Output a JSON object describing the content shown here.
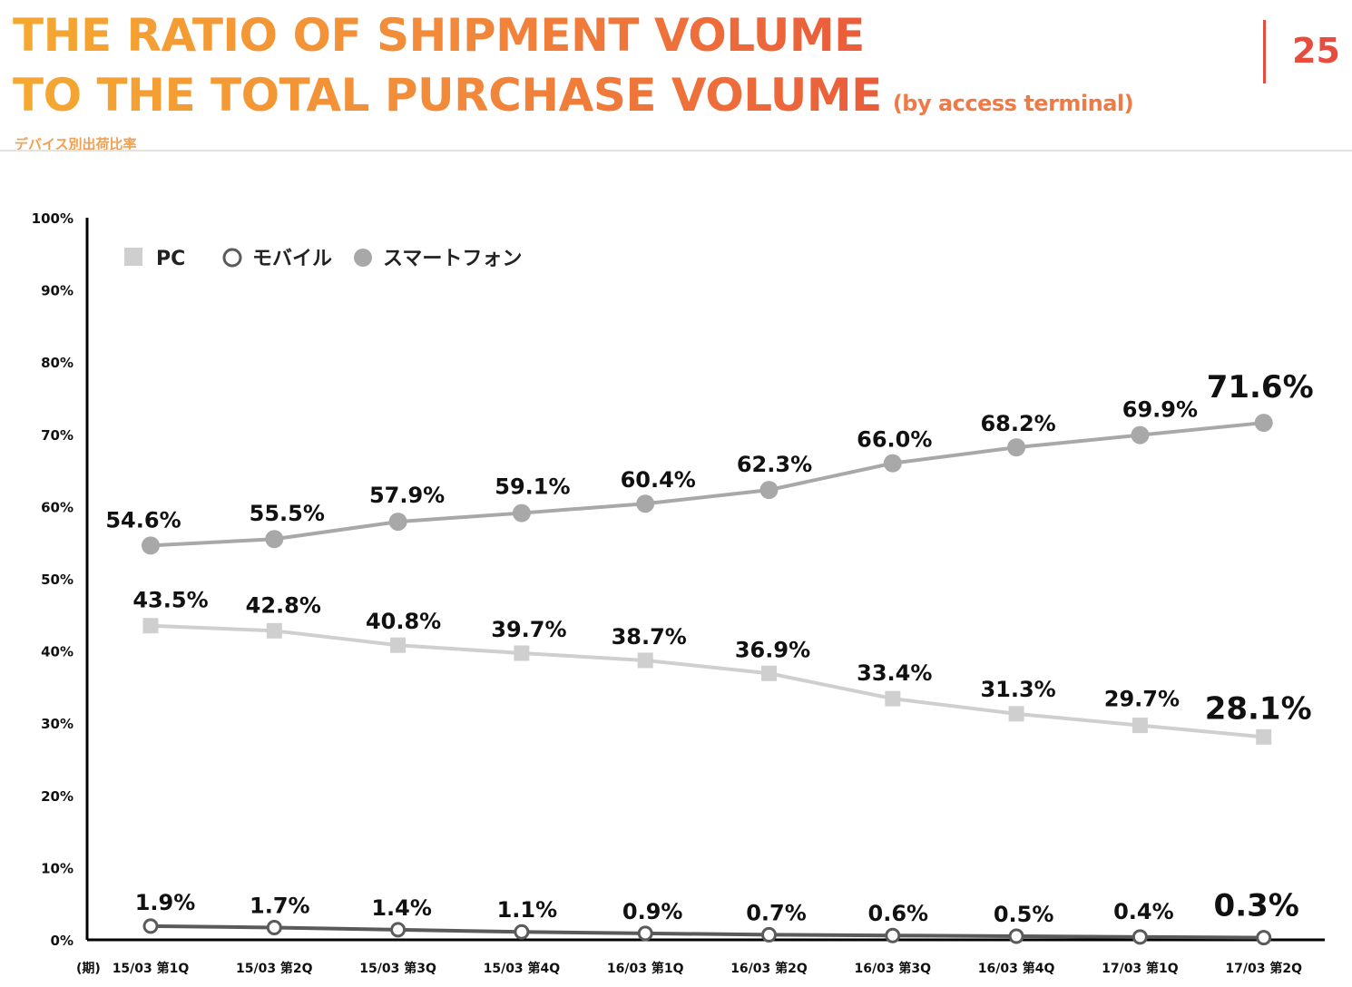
{
  "header": {
    "title_line1": "THE RATIO OF SHIPMENT VOLUME",
    "title_line2": "TO THE TOTAL PURCHASE  VOLUME",
    "subtitle": "(by access terminal)",
    "japanese_subtitle": "デバイス別出荷比率",
    "page_number": "25"
  },
  "colors": {
    "title_gradient_start": "#f5a830",
    "title_gradient_end": "#ea5c3a",
    "page_number": "#e84c3d",
    "pc": "#cfcfcf",
    "mobile": "#5a5a5a",
    "smartphone": "#a8a8a8"
  },
  "chart_data": {
    "type": "line",
    "x_prefix": "(期)",
    "categories": [
      "15/03 第1Q",
      "15/03 第2Q",
      "15/03 第3Q",
      "15/03 第4Q",
      "16/03 第1Q",
      "16/03 第2Q",
      "16/03 第3Q",
      "16/03 第4Q",
      "17/03 第1Q",
      "17/03 第2Q"
    ],
    "y_ticks": [
      "0%",
      "10%",
      "20%",
      "30%",
      "40%",
      "50%",
      "60%",
      "70%",
      "80%",
      "90%",
      "100%"
    ],
    "ylim": [
      0,
      100
    ],
    "grid": false,
    "legend_position": "top-left",
    "series": [
      {
        "name": "PC",
        "marker": "square",
        "values": [
          43.5,
          42.8,
          40.8,
          39.7,
          38.7,
          36.9,
          33.4,
          31.3,
          29.7,
          28.1
        ],
        "labels": [
          "43.5%",
          "42.8%",
          "40.8%",
          "39.7%",
          "38.7%",
          "36.9%",
          "33.4%",
          "31.3%",
          "29.7%",
          "28.1%"
        ]
      },
      {
        "name": "モバイル",
        "marker": "hollow-circle",
        "values": [
          1.9,
          1.7,
          1.4,
          1.1,
          0.9,
          0.7,
          0.6,
          0.5,
          0.4,
          0.3
        ],
        "labels": [
          "1.9%",
          "1.7%",
          "1.4%",
          "1.1%",
          "0.9%",
          "0.7%",
          "0.6%",
          "0.5%",
          "0.4%",
          "0.3%"
        ]
      },
      {
        "name": "スマートフォン",
        "marker": "filled-circle",
        "values": [
          54.6,
          55.5,
          57.9,
          59.1,
          60.4,
          62.3,
          66.0,
          68.2,
          69.9,
          71.6
        ],
        "labels": [
          "54.6%",
          "55.5%",
          "57.9%",
          "59.1%",
          "60.4%",
          "62.3%",
          "66.0%",
          "68.2%",
          "69.9%",
          "71.6%"
        ]
      }
    ]
  }
}
